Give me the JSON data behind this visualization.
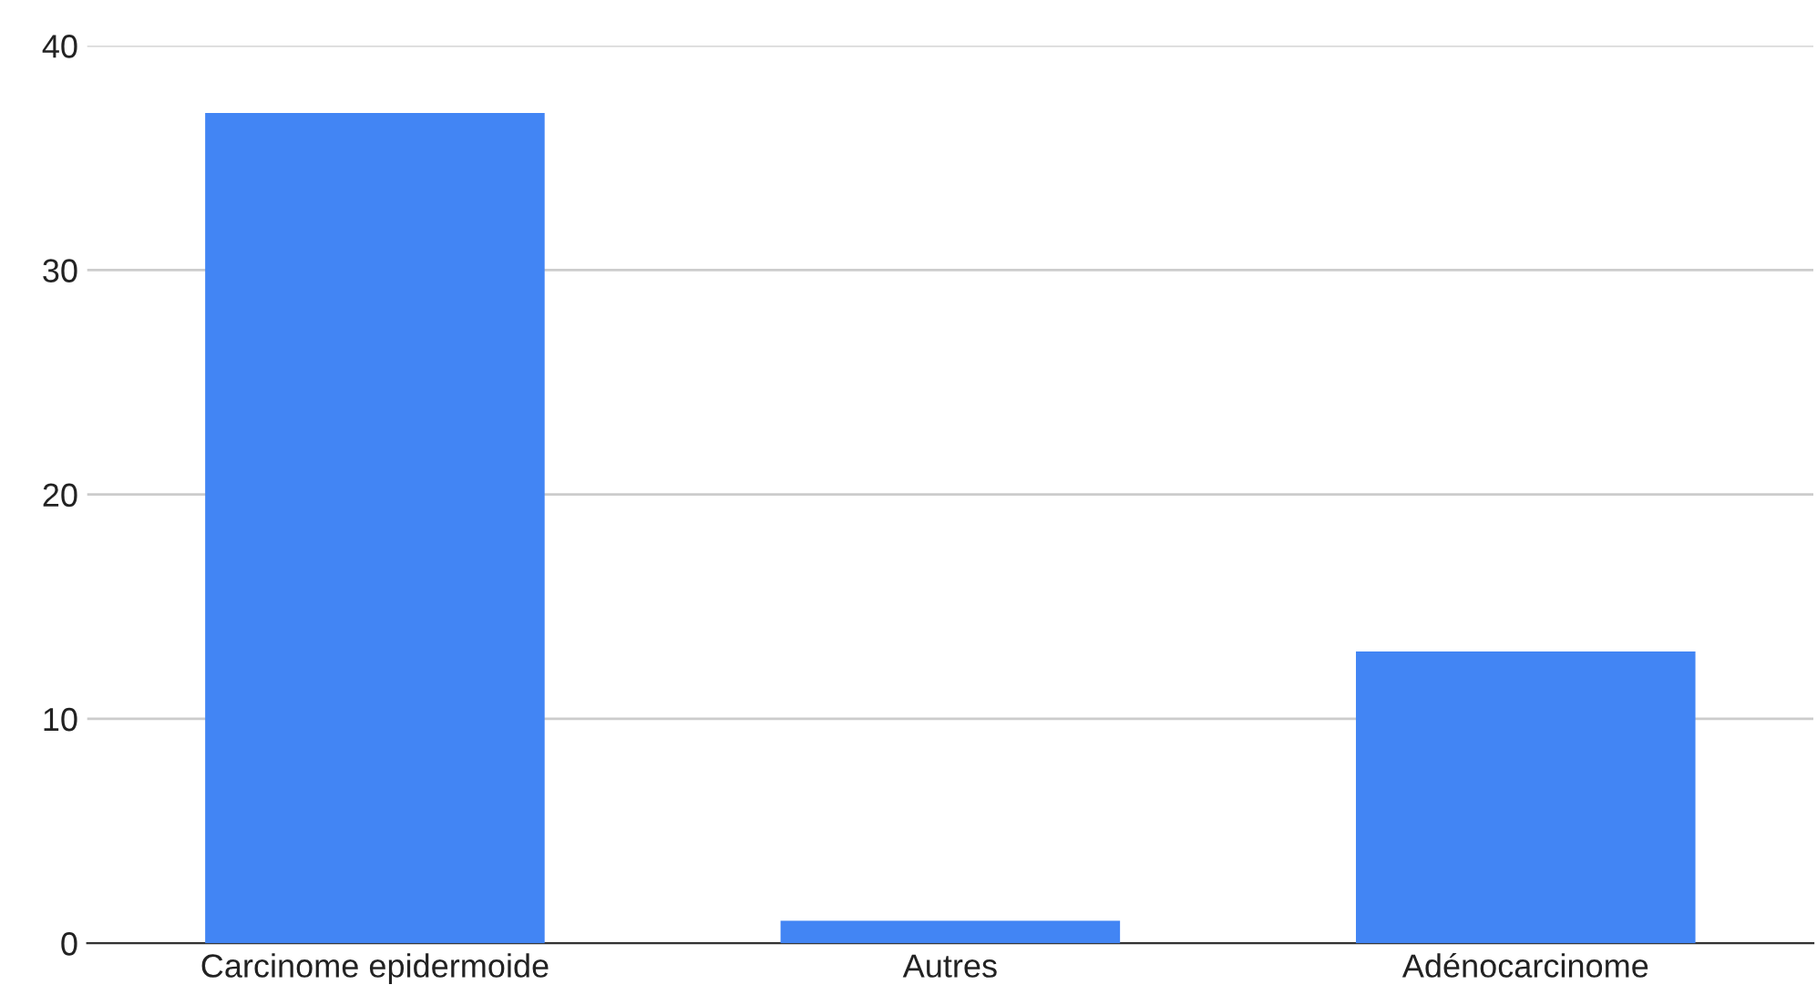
{
  "chart_data": {
    "type": "bar",
    "categories": [
      "Carcinome epidermoide",
      "Autres",
      "Adénocarcinome"
    ],
    "values": [
      37,
      1,
      13
    ],
    "color": "#4285f4",
    "ylim": [
      0,
      40
    ],
    "yticks": [
      0,
      10,
      20,
      30,
      40
    ],
    "grid": "y"
  }
}
